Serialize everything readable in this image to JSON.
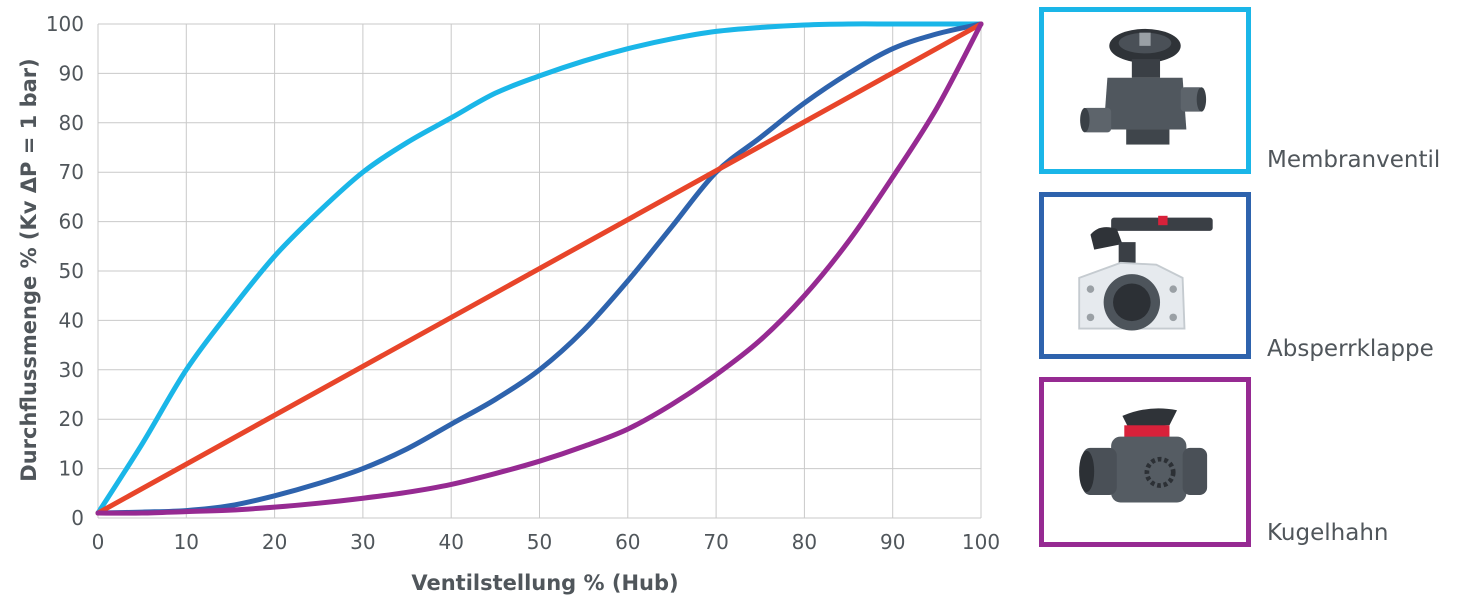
{
  "chart_data": {
    "type": "line",
    "xlabel": "Ventilstellung % (Hub)",
    "ylabel": "Durchflussmenge % (Kv ΔP = 1 bar)",
    "xlim": [
      0,
      100
    ],
    "ylim": [
      0,
      100
    ],
    "x_ticks": [
      0,
      10,
      20,
      30,
      40,
      50,
      60,
      70,
      80,
      90,
      100
    ],
    "y_ticks": [
      0,
      10,
      20,
      30,
      40,
      50,
      60,
      70,
      80,
      90,
      100
    ],
    "grid": true,
    "legend_placement": "right",
    "series": [
      {
        "name": "Membranventil",
        "color": "#1ab6e8",
        "x": [
          0,
          5,
          10,
          15,
          20,
          25,
          30,
          35,
          40,
          45,
          50,
          55,
          60,
          65,
          70,
          75,
          80,
          85,
          90,
          95,
          100
        ],
        "y": [
          1,
          15,
          30,
          42,
          53,
          62,
          70,
          76,
          81,
          86,
          89.5,
          92.5,
          95,
          97,
          98.5,
          99.3,
          99.8,
          100,
          100,
          100,
          100
        ]
      },
      {
        "name": "Absperrklappe",
        "color": "#2e63ad",
        "x": [
          0,
          5,
          10,
          15,
          20,
          25,
          30,
          35,
          40,
          45,
          50,
          55,
          60,
          65,
          70,
          75,
          80,
          85,
          90,
          95,
          100
        ],
        "y": [
          1,
          1.2,
          1.5,
          2.5,
          4.5,
          7,
          10,
          14,
          19,
          24,
          30,
          38,
          48,
          59,
          70,
          77,
          84,
          90,
          95,
          98,
          100
        ]
      },
      {
        "name": "",
        "color": "#e8452a",
        "x": [
          0,
          100
        ],
        "y": [
          1,
          100
        ]
      },
      {
        "name": "Kugelhahn",
        "color": "#962a92",
        "x": [
          0,
          5,
          10,
          15,
          20,
          25,
          30,
          35,
          40,
          45,
          50,
          55,
          60,
          65,
          70,
          75,
          80,
          85,
          90,
          95,
          100
        ],
        "y": [
          1,
          1,
          1.3,
          1.6,
          2.2,
          3,
          4,
          5.2,
          6.8,
          9,
          11.5,
          14.5,
          18,
          23,
          29,
          36,
          45,
          56,
          69,
          83,
          100
        ]
      }
    ]
  },
  "legend": {
    "items": [
      {
        "label": "Membranventil",
        "color": "#1ab6e8",
        "icon": "diaphragm-valve-icon"
      },
      {
        "label": "Absperrklappe",
        "color": "#2e63ad",
        "icon": "butterfly-valve-icon"
      },
      {
        "label": "Kugelhahn",
        "color": "#962a92",
        "icon": "ball-valve-icon"
      }
    ]
  }
}
